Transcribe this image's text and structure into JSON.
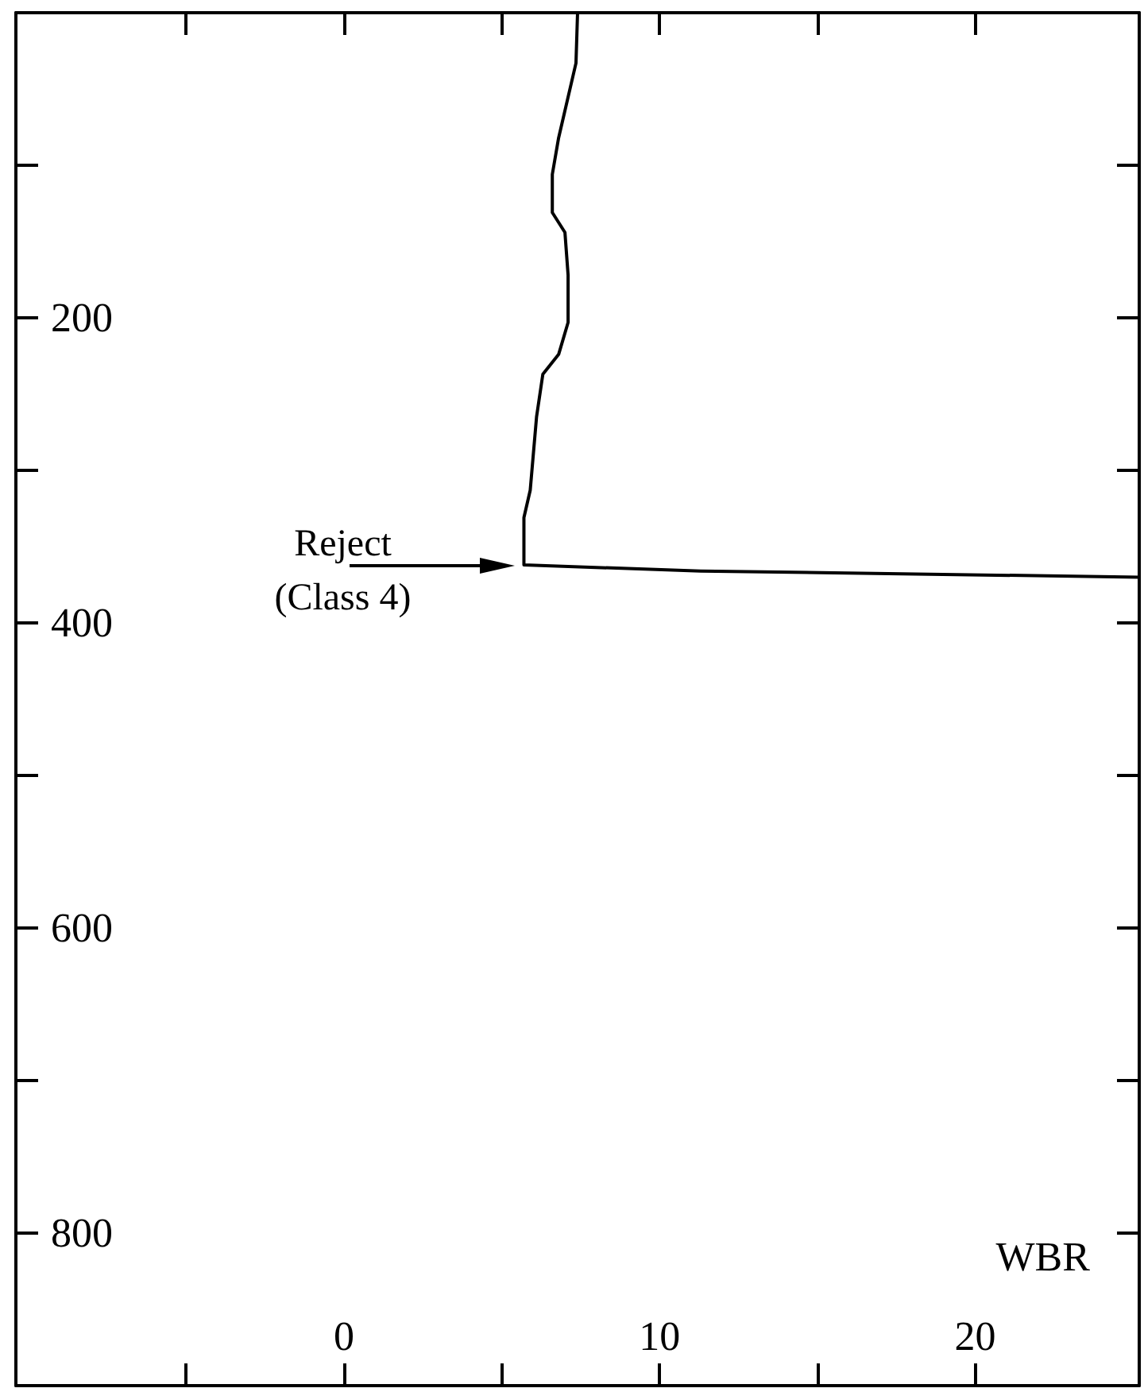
{
  "chart_data": {
    "type": "line",
    "x": [
      7.4,
      7.35,
      6.8,
      6.6,
      6.6,
      7.0,
      7.1,
      7.1,
      6.8,
      6.3,
      6.1,
      5.9,
      5.7,
      5.7,
      11.3,
      25.2
    ],
    "values": [
      0,
      33,
      82,
      106,
      131,
      144,
      172,
      203,
      224,
      237,
      265,
      313,
      331,
      362,
      366,
      370
    ],
    "color": "#000000",
    "xlim": [
      -10.4,
      25.2
    ],
    "xticks": [
      {
        "value": -5,
        "label": null
      },
      0,
      {
        "value": 5,
        "label": null
      },
      10,
      {
        "value": 15,
        "label": null
      },
      20
    ],
    "ylim": [
      900,
      0
    ],
    "yticks": [
      {
        "value": 100,
        "label": null
      },
      200,
      {
        "value": 300,
        "label": null
      },
      400,
      {
        "value": 500,
        "label": null
      },
      600,
      {
        "value": 700,
        "label": null
      },
      800
    ],
    "annotations": [
      {
        "text": "Reject\n(Class 4)",
        "x": 5.7,
        "y": 362
      },
      "WBR"
    ],
    "grid": false,
    "marker": "none",
    "line_style": "solid"
  }
}
